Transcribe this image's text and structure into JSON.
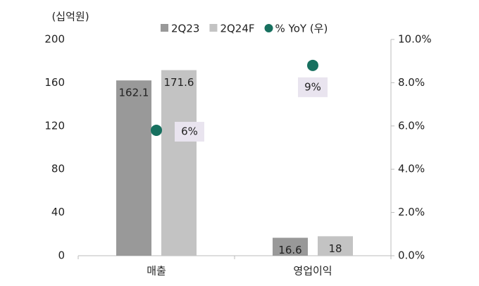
{
  "chart_data": {
    "type": "bar",
    "y_label": "(십억원)",
    "categories": [
      "매출",
      "영업이익"
    ],
    "series": [
      {
        "name": "2Q23",
        "color": "#999999",
        "values": [
          162.1,
          16.6
        ]
      },
      {
        "name": "2Q24F",
        "color": "#c3c3c3",
        "values": [
          171.6,
          18.0
        ]
      },
      {
        "name": "% YoY (우)",
        "type": "scatter",
        "axis": "y2",
        "color": "#17705f",
        "values": [
          5.8,
          8.8
        ],
        "value_labels": [
          "6%",
          "9%"
        ],
        "label_color": "#e9e4ef"
      }
    ],
    "ylim": [
      0,
      200
    ],
    "yticks": [
      0,
      40,
      80,
      120,
      160,
      200
    ],
    "y2lim": [
      0,
      10
    ],
    "y2ticks": [
      {
        "value": 0,
        "label": "0.0%"
      },
      {
        "value": 2,
        "label": "2.0%"
      },
      {
        "value": 4,
        "label": "4.0%"
      },
      {
        "value": 6,
        "label": "6.0%"
      },
      {
        "value": 8,
        "label": "8.0%"
      },
      {
        "value": 10,
        "label": "10.0%"
      }
    ],
    "legend": "top"
  }
}
